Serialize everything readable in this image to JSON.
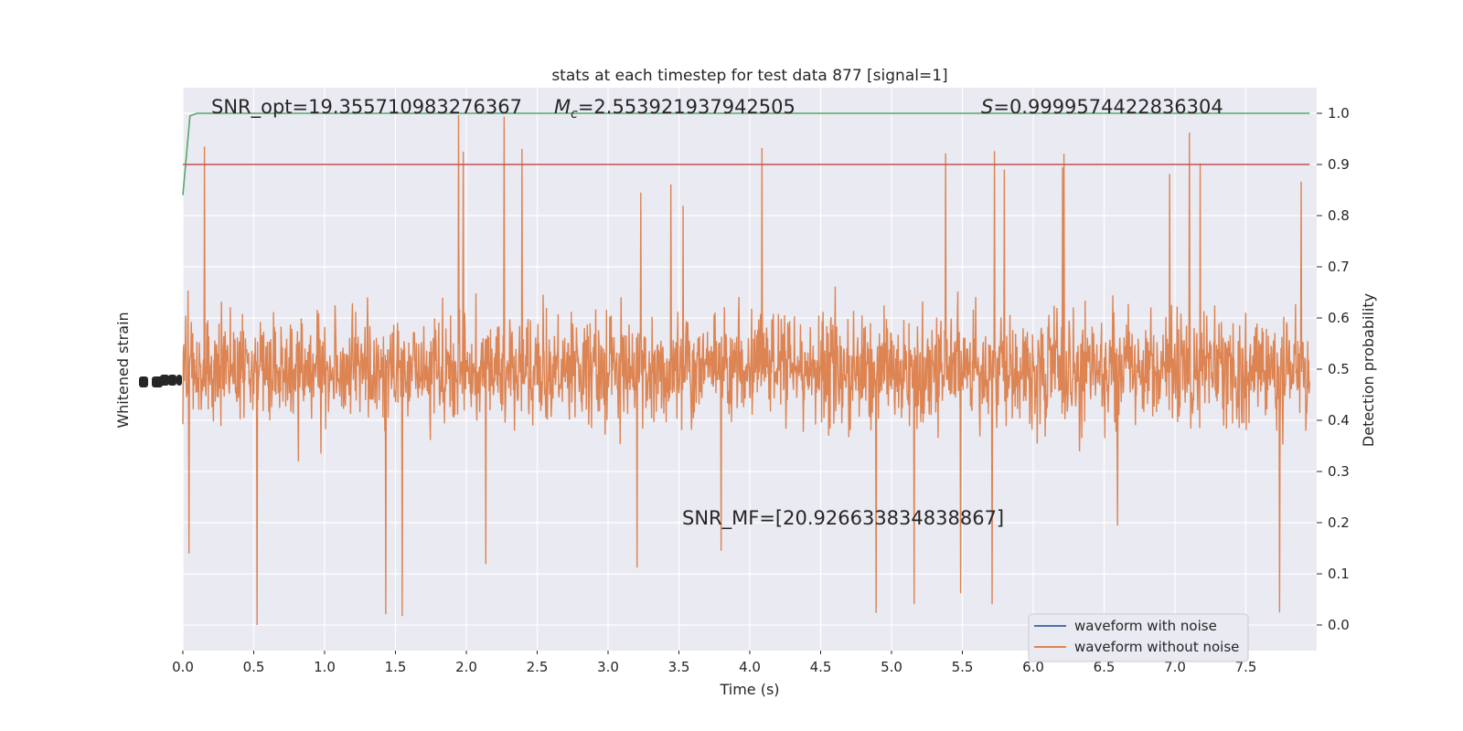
{
  "chart_data": {
    "type": "line",
    "title": "stats at each timestep for test data 877 [signal=1]",
    "xlabel": "Time (s)",
    "ylabel_left": "Whitened strain",
    "ylabel_right": "Detection probability",
    "xlim": [
      0,
      8
    ],
    "ylim_right": [
      -0.05,
      1.05
    ],
    "x_ticks": [
      "0.0",
      "0.5",
      "1.0",
      "1.5",
      "2.0",
      "2.5",
      "3.0",
      "3.5",
      "4.0",
      "4.5",
      "5.0",
      "5.5",
      "6.0",
      "6.5",
      "7.0",
      "7.5"
    ],
    "y_ticks_right": [
      "0.0",
      "0.1",
      "0.2",
      "0.3",
      "0.4",
      "0.5",
      "0.6",
      "0.7",
      "0.8",
      "0.9",
      "1.0"
    ],
    "grid": true,
    "annotations": {
      "snr_opt": "SNR_opt=19.355710983276367",
      "mc_symbol": "M",
      "mc_sub": "c",
      "mc_value": "=2.553921937942505",
      "s_symbol": "S",
      "s_value": "=0.9999574422836304",
      "snr_mf": "SNR_MF=[20.926633834838867]"
    },
    "legend": {
      "placement": "lower-right",
      "entries": [
        "waveform with noise",
        "waveform without noise"
      ]
    },
    "series": [
      {
        "name": "waveform with noise",
        "color": "#4c72b0",
        "description": "hidden behind orange trace"
      },
      {
        "name": "waveform without noise",
        "color": "#dd8452",
        "noise_center": 0.5,
        "typical_range": [
          0.3,
          0.7
        ],
        "extreme_range": [
          0.0,
          1.0
        ]
      },
      {
        "color": "#55a868",
        "x": [
          0,
          0.05,
          0.1,
          7.95
        ],
        "values": [
          0.84,
          0.995,
          1.0,
          1.0
        ]
      },
      {
        "color": "#c44e52",
        "x": [
          0,
          7.95
        ],
        "values": [
          0.9,
          0.9
        ]
      }
    ]
  }
}
